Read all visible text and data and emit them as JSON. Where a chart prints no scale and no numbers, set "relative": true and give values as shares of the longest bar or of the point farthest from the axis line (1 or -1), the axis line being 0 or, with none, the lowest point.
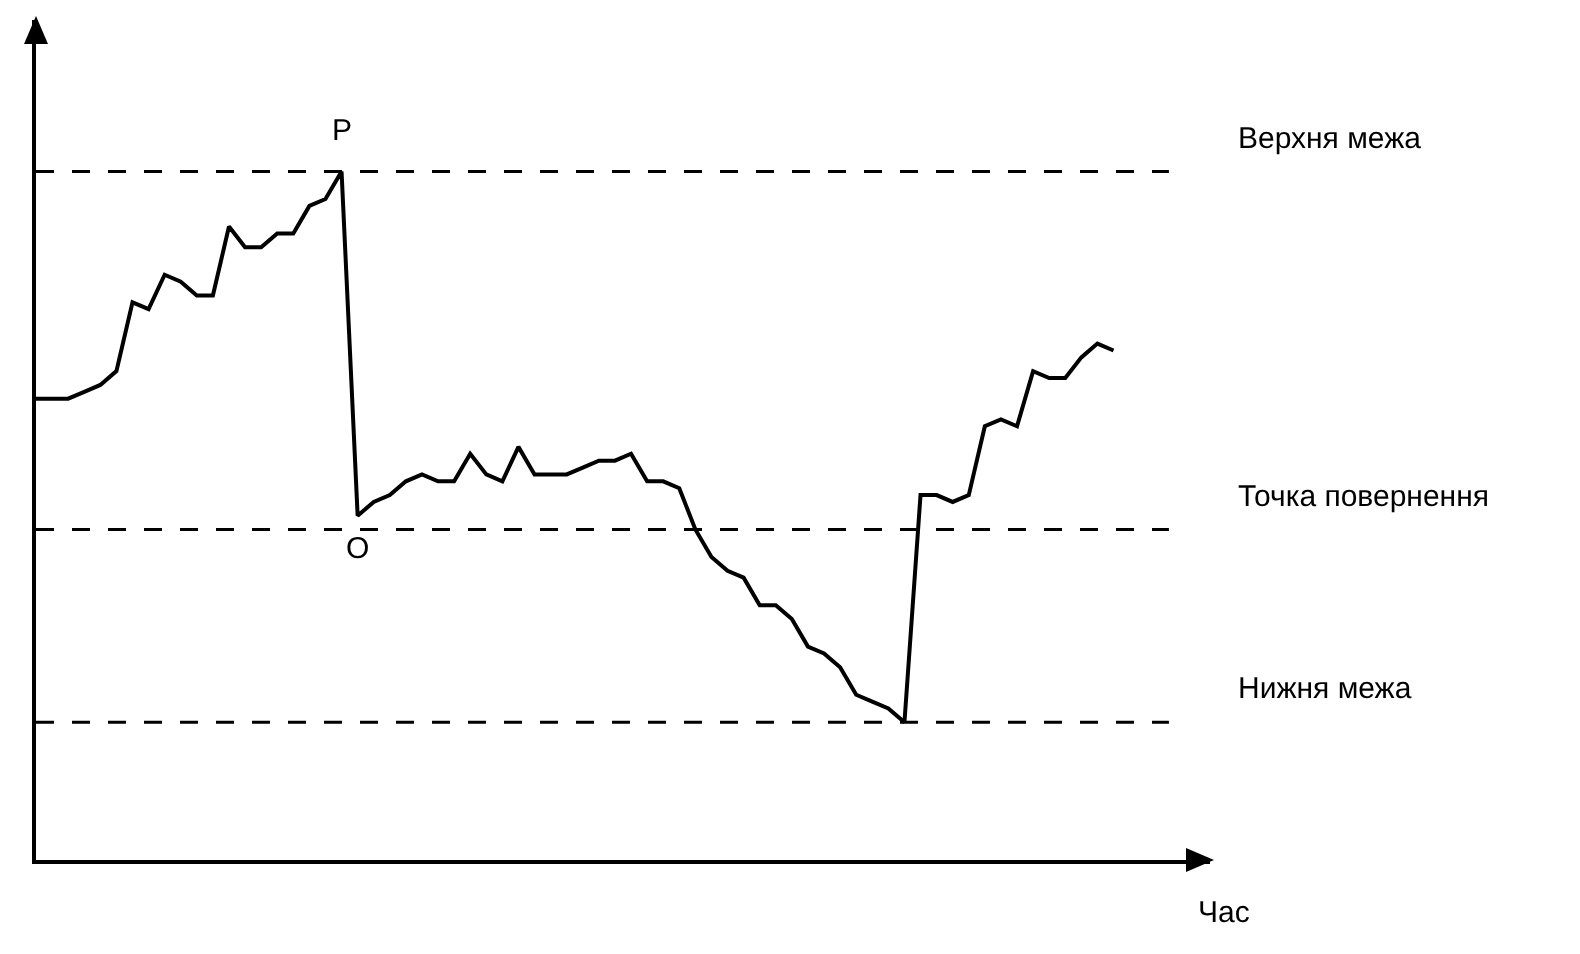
{
  "chart_data": {
    "type": "line",
    "relative": true,
    "xlabel": "Час",
    "grid": false,
    "marker": "none",
    "categories": [
      null,
      null,
      null,
      null,
      null,
      null,
      null,
      null,
      null,
      null,
      null,
      null,
      null,
      null,
      null,
      null,
      null,
      null,
      null,
      null,
      null,
      null,
      null,
      null,
      null,
      null,
      null,
      null,
      null,
      null,
      null,
      null,
      null,
      null,
      null,
      null,
      null,
      null,
      null,
      null,
      null,
      null,
      null,
      null,
      null,
      null,
      null,
      null,
      null,
      null,
      null,
      null,
      null,
      null,
      null,
      null,
      null,
      null,
      null,
      null,
      null,
      null,
      null,
      null,
      null,
      null,
      null,
      null,
      null,
      null,
      null,
      null,
      null,
      null
    ],
    "series": [
      {
        "color": "#000000",
        "values": [
          0.67,
          0.67,
          0.67,
          0.68,
          0.69,
          0.71,
          0.81,
          0.8,
          0.85,
          0.84,
          0.82,
          0.82,
          0.92,
          0.89,
          0.89,
          0.91,
          0.91,
          0.95,
          0.96,
          1.0,
          0.5,
          0.52,
          0.53,
          0.55,
          0.56,
          0.55,
          0.55,
          0.59,
          0.56,
          0.55,
          0.6,
          0.56,
          0.56,
          0.56,
          0.57,
          0.58,
          0.58,
          0.59,
          0.55,
          0.55,
          0.54,
          0.48,
          0.44,
          0.42,
          0.41,
          0.37,
          0.37,
          0.35,
          0.31,
          0.3,
          0.28,
          0.24,
          0.23,
          0.22,
          0.2,
          0.53,
          0.53,
          0.52,
          0.53,
          0.63,
          0.64,
          0.63,
          0.71,
          0.7,
          0.7,
          0.73,
          0.75,
          0.74,
          null,
          null,
          null,
          null,
          null,
          null
        ]
      }
    ],
    "ref_lines": [
      {
        "axis": "y",
        "value": 1.0,
        "label": "Верхня межа",
        "color": "#000000",
        "line_style": "dashed"
      },
      {
        "axis": "y",
        "value": 0.48,
        "label": "Точка повернення",
        "color": "#000000",
        "line_style": "dashed"
      },
      {
        "axis": "y",
        "value": 0.2,
        "label": "Нижня межа",
        "color": "#000000",
        "line_style": "dashed"
      }
    ],
    "annotations": [
      {
        "text": "P",
        "y": 1.0
      },
      {
        "text": "O",
        "y": 0.5
      }
    ]
  }
}
